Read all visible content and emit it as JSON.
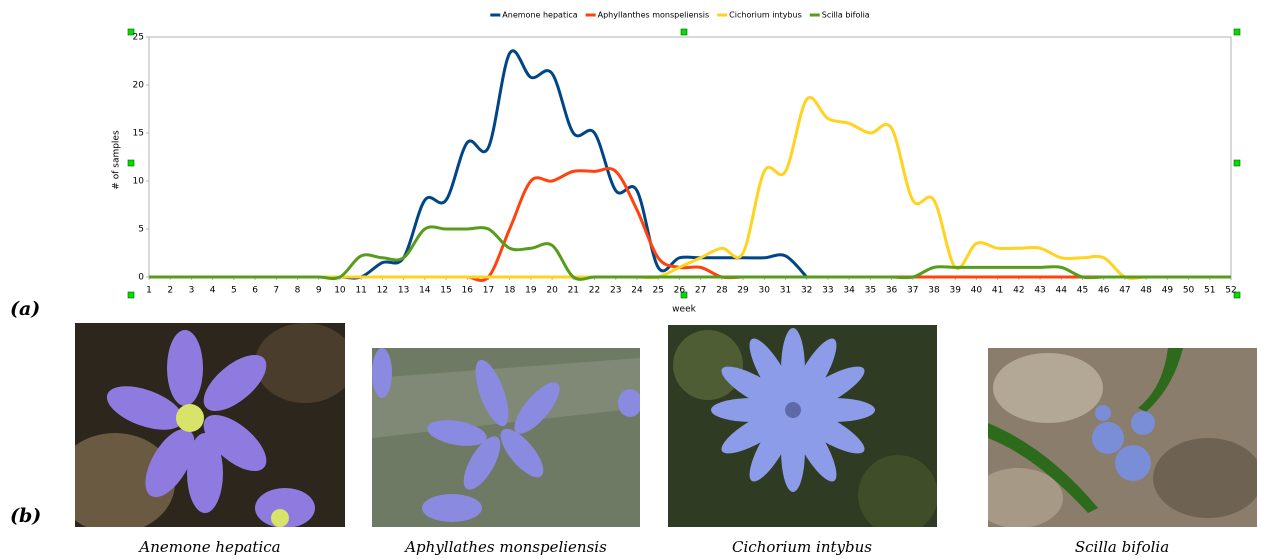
{
  "chart_data": {
    "type": "line",
    "xlabel": "week",
    "ylabel": "# of samples",
    "x": [
      1,
      2,
      3,
      4,
      5,
      6,
      7,
      8,
      9,
      10,
      11,
      12,
      13,
      14,
      15,
      16,
      17,
      18,
      19,
      20,
      21,
      22,
      23,
      24,
      25,
      26,
      27,
      28,
      29,
      30,
      31,
      32,
      33,
      34,
      35,
      36,
      37,
      38,
      39,
      40,
      41,
      42,
      43,
      44,
      45,
      46,
      47,
      48,
      49,
      50,
      51,
      52
    ],
    "xlim": [
      1,
      52
    ],
    "xticks": [
      1,
      2,
      3,
      4,
      5,
      6,
      7,
      8,
      9,
      10,
      11,
      12,
      13,
      14,
      15,
      16,
      17,
      18,
      19,
      20,
      21,
      22,
      23,
      24,
      25,
      26,
      27,
      28,
      29,
      30,
      31,
      32,
      33,
      34,
      35,
      36,
      37,
      38,
      39,
      40,
      41,
      42,
      43,
      44,
      45,
      46,
      47,
      48,
      49,
      50,
      51,
      52
    ],
    "ylim": [
      0,
      25
    ],
    "yticks": [
      0,
      5,
      10,
      15,
      20,
      25
    ],
    "grid": false,
    "legend": "top",
    "series": [
      {
        "name": "Anemone hepatica",
        "color": "#004586",
        "values": [
          0,
          0,
          0,
          0,
          0,
          0,
          0,
          0,
          0,
          0,
          0,
          1.5,
          2,
          8,
          8,
          14,
          13.5,
          23.3,
          20.8,
          21.2,
          15,
          15,
          9,
          9,
          1,
          2,
          2,
          2,
          2,
          2,
          2.2,
          0,
          null,
          null,
          null,
          null,
          null,
          null,
          null,
          null,
          null,
          null,
          null,
          null,
          null,
          null,
          null,
          null,
          null,
          null,
          null,
          null
        ]
      },
      {
        "name": "Aphyllanthes monspeliensis",
        "color": "#ff420e",
        "values": [
          0,
          0,
          0,
          0,
          0,
          0,
          0,
          0,
          0,
          0,
          0,
          0,
          0,
          0,
          0,
          0,
          0,
          5,
          10,
          10,
          11,
          11,
          11,
          7,
          2,
          1,
          1,
          0,
          0,
          0,
          0,
          0,
          0,
          0,
          0,
          0,
          0,
          0,
          0,
          0,
          0,
          0,
          0,
          0,
          0,
          0,
          0,
          0,
          0,
          0,
          0,
          0
        ]
      },
      {
        "name": "Cichorium intybus",
        "color": "#ffd320",
        "values": [
          0,
          0,
          0,
          0,
          0,
          0,
          0,
          0,
          0,
          0,
          0,
          0,
          0,
          0,
          0,
          0,
          0,
          0,
          0,
          0,
          0,
          0,
          0,
          0,
          0,
          1,
          2,
          3,
          2.5,
          11,
          11,
          18.5,
          16.5,
          16,
          15,
          15.5,
          8,
          8,
          1,
          3.5,
          3,
          3,
          3,
          2,
          2,
          2,
          0,
          0,
          0,
          0,
          0,
          0
        ]
      },
      {
        "name": "Scilla bifolia",
        "color": "#579d1c",
        "values": [
          0,
          0,
          0,
          0,
          0,
          0,
          0,
          0,
          0,
          0,
          2.2,
          2,
          2,
          5,
          5,
          5,
          5,
          3,
          3,
          3.3,
          0,
          0,
          0,
          0,
          0,
          0,
          0,
          0,
          0,
          0,
          0,
          0,
          0,
          0,
          0,
          0,
          0,
          1,
          1,
          1,
          1,
          1,
          1,
          1,
          0,
          0,
          0,
          0,
          0,
          0,
          0,
          0
        ]
      }
    ]
  },
  "figure": {
    "labels": [
      "(a)",
      "(b)"
    ],
    "captions": [
      "Anemone hepatica",
      "Aphyllathes monspeliensis",
      "Cichorium intybus",
      "Scilla bifolia"
    ]
  }
}
